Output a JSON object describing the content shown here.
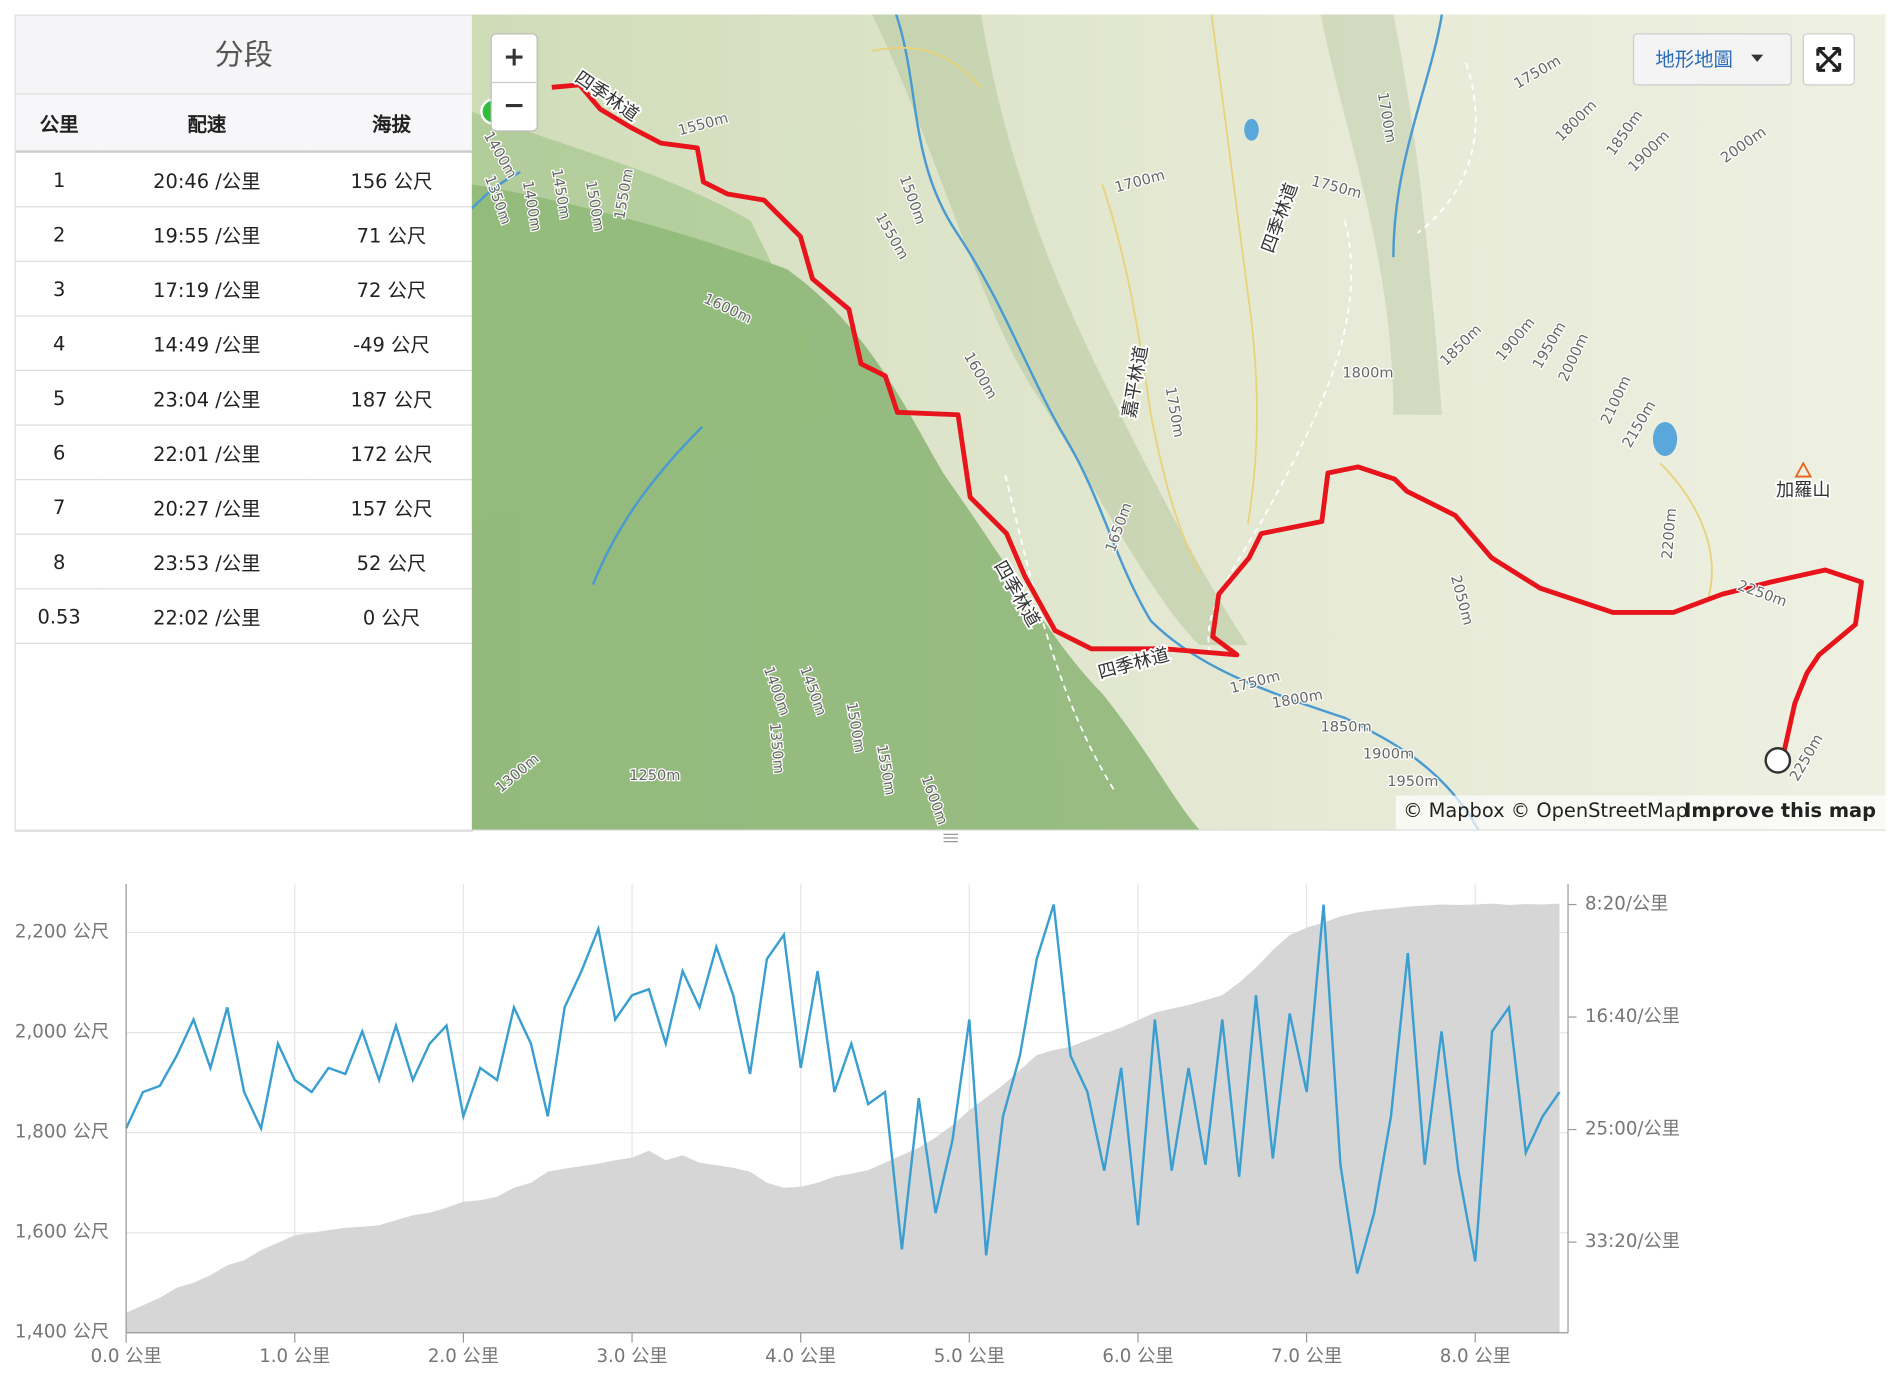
{
  "splits": {
    "title": "分段",
    "columns": [
      "公里",
      "配速",
      "海拔"
    ],
    "rows": [
      [
        "1",
        "20:46 /公里",
        "156 公尺"
      ],
      [
        "2",
        "19:55 /公里",
        "71 公尺"
      ],
      [
        "3",
        "17:19 /公里",
        "72 公尺"
      ],
      [
        "4",
        "14:49 /公里",
        "-49 公尺"
      ],
      [
        "5",
        "23:04 /公里",
        "187 公尺"
      ],
      [
        "6",
        "22:01 /公里",
        "172 公尺"
      ],
      [
        "7",
        "20:27 /公里",
        "157 公尺"
      ],
      [
        "8",
        "23:53 /公里",
        "52 公尺"
      ],
      [
        "0.53",
        "22:02 /公里",
        "0 公尺"
      ]
    ]
  },
  "map": {
    "zoom_in": "+",
    "zoom_out": "−",
    "layer_button": "地形地圖",
    "attribution": "© Mapbox © OpenStreetMap",
    "improve": "Improve this map",
    "labels": [
      "四季林道",
      "1550m",
      "1400m",
      "1450m",
      "1500m",
      "1550m",
      "1350m",
      "1400m",
      "1500m",
      "1550m",
      "1600m",
      "1600m",
      "1700m",
      "1750m",
      "四季林道",
      "1700m",
      "嘉平林道",
      "1750m",
      "1800m",
      "1850m",
      "1900m",
      "1950m",
      "2000m",
      "2100m",
      "2150m",
      "1750m",
      "1800m",
      "1850m",
      "1900m",
      "2000m",
      "2200m",
      "2050m",
      "2250m",
      "2250m",
      "加羅山",
      "1650m",
      "四季林道",
      "四季林道",
      "1750m",
      "1800m",
      "1850m",
      "1900m",
      "1950m",
      "1400m",
      "1450m",
      "1500m",
      "1550m",
      "1350m",
      "1300m",
      "1250m",
      "1600m"
    ]
  },
  "chart_data": {
    "type": "line",
    "x": [
      0,
      0.1,
      0.2,
      0.3,
      0.4,
      0.5,
      0.6,
      0.7,
      0.8,
      0.9,
      1.0,
      1.1,
      1.2,
      1.3,
      1.4,
      1.5,
      1.6,
      1.7,
      1.8,
      1.9,
      2.0,
      2.1,
      2.2,
      2.3,
      2.4,
      2.5,
      2.6,
      2.7,
      2.8,
      2.9,
      3.0,
      3.1,
      3.2,
      3.3,
      3.4,
      3.5,
      3.6,
      3.7,
      3.8,
      3.9,
      4.0,
      4.1,
      4.2,
      4.3,
      4.4,
      4.5,
      4.6,
      4.7,
      4.8,
      4.9,
      5.0,
      5.1,
      5.2,
      5.3,
      5.4,
      5.5,
      5.6,
      5.7,
      5.8,
      5.9,
      6.0,
      6.1,
      6.2,
      6.3,
      6.4,
      6.5,
      6.6,
      6.7,
      6.8,
      6.9,
      7.0,
      7.1,
      7.2,
      7.3,
      7.4,
      7.5,
      7.6,
      7.7,
      7.8,
      7.9,
      8.0,
      8.1,
      8.2,
      8.3,
      8.4,
      8.5
    ],
    "series": [
      {
        "color": "#d6d6d6",
        "fill": true,
        "values": [
          1440,
          1455,
          1470,
          1490,
          1500,
          1515,
          1535,
          1545,
          1565,
          1580,
          1595,
          1600,
          1605,
          1610,
          1612,
          1615,
          1625,
          1635,
          1640,
          1650,
          1662,
          1665,
          1672,
          1690,
          1700,
          1722,
          1728,
          1733,
          1738,
          1745,
          1750,
          1764,
          1745,
          1755,
          1740,
          1735,
          1730,
          1722,
          1700,
          1690,
          1692,
          1700,
          1712,
          1718,
          1725,
          1740,
          1755,
          1770,
          1790,
          1815,
          1845,
          1870,
          1895,
          1925,
          1955,
          1965,
          1972,
          1985,
          1998,
          2010,
          2025,
          2040,
          2048,
          2055,
          2065,
          2075,
          2100,
          2130,
          2165,
          2195,
          2210,
          2220,
          2232,
          2240,
          2245,
          2248,
          2252,
          2254,
          2256,
          2255,
          2256,
          2258,
          2255,
          2257,
          2256,
          2258
        ]
      },
      {
        "color": "#3a9fd0",
        "axis": "y2",
        "values": [
          1495,
          1333,
          1306,
          1172,
          1011,
          1226,
          957,
          1333,
          1495,
          1118,
          1280,
          1333,
          1226,
          1253,
          1064,
          1280,
          1038,
          1280,
          1118,
          1038,
          1441,
          1226,
          1280,
          957,
          1118,
          1441,
          957,
          796,
          608,
          1011,
          903,
          876,
          1118,
          796,
          957,
          688,
          903,
          1253,
          742,
          634,
          1226,
          796,
          1333,
          1118,
          1387,
          1333,
          2032,
          1360,
          1871,
          1548,
          1011,
          2059,
          1441,
          1172,
          742,
          500,
          1172,
          1333,
          1683,
          1226,
          1925,
          1011,
          1683,
          1226,
          1656,
          1011,
          1710,
          903,
          1629,
          984,
          1333,
          500,
          1656,
          2140,
          1871,
          1441,
          715,
          1656,
          1064,
          1683,
          2086,
          1064,
          957,
          1602,
          1441,
          1333
        ]
      }
    ],
    "xlim": [
      0,
      8.55
    ],
    "xticks": [
      {
        "value": 0,
        "label": "0.0 公里"
      },
      {
        "value": 1,
        "label": "1.0 公里"
      },
      {
        "value": 2,
        "label": "2.0 公里"
      },
      {
        "value": 3,
        "label": "3.0 公里"
      },
      {
        "value": 4,
        "label": "4.0 公里"
      },
      {
        "value": 5,
        "label": "5.0 公里"
      },
      {
        "value": 6,
        "label": "6.0 公里"
      },
      {
        "value": 7,
        "label": "7.0 公里"
      },
      {
        "value": 8,
        "label": "8.0 公里"
      }
    ],
    "ylim": [
      1400,
      2297
    ],
    "yticks": [
      {
        "value": 1400,
        "label": "1,400 公尺"
      },
      {
        "value": 1600,
        "label": "1,600 公尺"
      },
      {
        "value": 1800,
        "label": "1,800 公尺"
      },
      {
        "value": 2000,
        "label": "2,000 公尺"
      },
      {
        "value": 2200,
        "label": "2,200 公尺"
      }
    ],
    "y2lim": [
      2403,
      409
    ],
    "y2ticks": [
      {
        "value": 500,
        "label": "8:20/公里"
      },
      {
        "value": 1000,
        "label": "16:40/公里"
      },
      {
        "value": 1500,
        "label": "25:00/公里"
      },
      {
        "value": 2000,
        "label": "33:20/公里"
      }
    ],
    "grid": true
  }
}
